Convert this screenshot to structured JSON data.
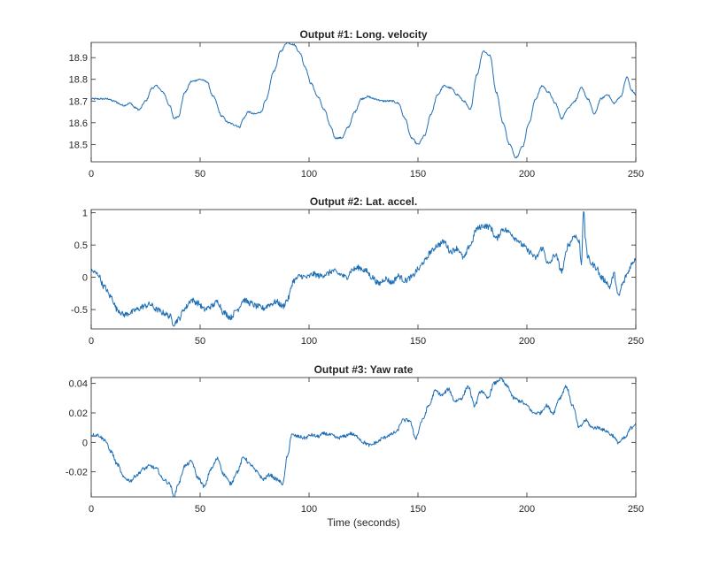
{
  "chart_data": [
    {
      "type": "line",
      "title": "Output #1: Long. velocity",
      "xlabel": "",
      "ylabel": "",
      "xlim": [
        0,
        250
      ],
      "ylim": [
        18.42,
        18.97
      ],
      "xticks": [
        0,
        50,
        100,
        150,
        200,
        250
      ],
      "xtick_labels": [
        "0",
        "50",
        "100",
        "150",
        "200",
        "250"
      ],
      "yticks": [
        18.5,
        18.6,
        18.7,
        18.8,
        18.9
      ],
      "ytick_labels": [
        "18.5",
        "18.6",
        "18.7",
        "18.8",
        "18.9"
      ],
      "color": "#1f6fb5",
      "noise": 0.004,
      "x": [
        0,
        5,
        8,
        10,
        15,
        18,
        20,
        22,
        25,
        28,
        30,
        33,
        36,
        38,
        40,
        43,
        46,
        50,
        53,
        56,
        60,
        63,
        66,
        68,
        70,
        72,
        75,
        78,
        80,
        84,
        87,
        90,
        93,
        96,
        98,
        101,
        104,
        107,
        110,
        112,
        115,
        118,
        121,
        124,
        127,
        130,
        134,
        138,
        141,
        144,
        147,
        150,
        153,
        156,
        159,
        162,
        165,
        168,
        171,
        174,
        177,
        180,
        183,
        186,
        189,
        192,
        195,
        198,
        201,
        204,
        207,
        210,
        213,
        216,
        219,
        222,
        225,
        228,
        231,
        234,
        237,
        240,
        243,
        246,
        248,
        250
      ],
      "y": [
        18.71,
        18.71,
        18.71,
        18.7,
        18.68,
        18.69,
        18.67,
        18.66,
        18.7,
        18.76,
        18.77,
        18.74,
        18.68,
        18.62,
        18.63,
        18.74,
        18.79,
        18.8,
        18.79,
        18.72,
        18.63,
        18.6,
        18.59,
        18.58,
        18.62,
        18.65,
        18.64,
        18.65,
        18.7,
        18.84,
        18.93,
        18.97,
        18.96,
        18.92,
        18.86,
        18.78,
        18.72,
        18.66,
        18.58,
        18.53,
        18.53,
        18.58,
        18.65,
        18.71,
        18.72,
        18.71,
        18.7,
        18.7,
        18.69,
        18.62,
        18.53,
        18.5,
        18.54,
        18.64,
        18.73,
        18.77,
        18.76,
        18.73,
        18.7,
        18.66,
        18.82,
        18.93,
        18.91,
        18.74,
        18.6,
        18.5,
        18.44,
        18.49,
        18.6,
        18.71,
        18.77,
        18.74,
        18.69,
        18.62,
        18.67,
        18.7,
        18.76,
        18.71,
        18.64,
        18.71,
        18.73,
        18.69,
        18.72,
        18.81,
        18.75,
        18.73
      ]
    },
    {
      "type": "line",
      "title": "Output #2: Lat. accel.",
      "xlabel": "",
      "ylabel": "",
      "xlim": [
        0,
        250
      ],
      "ylim": [
        -0.8,
        1.05
      ],
      "xticks": [
        0,
        50,
        100,
        150,
        200,
        250
      ],
      "xtick_labels": [
        "0",
        "50",
        "100",
        "150",
        "200",
        "250"
      ],
      "yticks": [
        -0.5,
        0,
        0.5,
        1
      ],
      "ytick_labels": [
        "-0.5",
        "0",
        "0.5",
        "1"
      ],
      "color": "#1f6fb5",
      "noise": 0.045,
      "x": [
        0,
        3,
        6,
        9,
        12,
        15,
        18,
        21,
        24,
        27,
        30,
        33,
        36,
        38,
        40,
        43,
        46,
        49,
        52,
        55,
        58,
        61,
        64,
        67,
        70,
        73,
        76,
        79,
        82,
        85,
        88,
        90,
        93,
        96,
        99,
        102,
        105,
        108,
        111,
        114,
        117,
        120,
        123,
        126,
        129,
        132,
        135,
        138,
        141,
        144,
        147,
        150,
        153,
        156,
        159,
        162,
        165,
        168,
        171,
        174,
        177,
        180,
        183,
        186,
        189,
        192,
        195,
        198,
        201,
        204,
        207,
        210,
        213,
        216,
        219,
        222,
        224,
        225,
        226,
        227,
        228,
        230,
        232,
        234,
        236,
        238,
        240,
        242,
        244,
        246,
        248,
        250
      ],
      "y": [
        0.1,
        0.05,
        -0.15,
        -0.3,
        -0.5,
        -0.58,
        -0.55,
        -0.5,
        -0.45,
        -0.42,
        -0.5,
        -0.55,
        -0.6,
        -0.72,
        -0.65,
        -0.48,
        -0.35,
        -0.4,
        -0.5,
        -0.45,
        -0.38,
        -0.55,
        -0.62,
        -0.5,
        -0.35,
        -0.4,
        -0.45,
        -0.48,
        -0.42,
        -0.38,
        -0.45,
        -0.35,
        -0.05,
        0.02,
        0.0,
        0.05,
        0.02,
        0.05,
        0.1,
        0.05,
        0.0,
        0.12,
        0.15,
        0.1,
        0.0,
        -0.1,
        -0.02,
        -0.08,
        0.02,
        -0.05,
        0.0,
        0.12,
        0.25,
        0.4,
        0.5,
        0.55,
        0.4,
        0.45,
        0.3,
        0.5,
        0.75,
        0.8,
        0.78,
        0.6,
        0.75,
        0.7,
        0.6,
        0.5,
        0.4,
        0.3,
        0.45,
        0.2,
        0.35,
        0.1,
        0.5,
        0.65,
        0.55,
        0.2,
        1.05,
        0.55,
        0.3,
        0.2,
        0.15,
        0.0,
        -0.05,
        -0.15,
        0.05,
        -0.3,
        -0.1,
        0.05,
        0.2,
        0.3
      ]
    },
    {
      "type": "line",
      "title": "Output #3: Yaw rate",
      "xlabel": "Time (seconds)",
      "ylabel": "",
      "xlim": [
        0,
        250
      ],
      "ylim": [
        -0.037,
        0.044
      ],
      "xticks": [
        0,
        50,
        100,
        150,
        200,
        250
      ],
      "xtick_labels": [
        "0",
        "50",
        "100",
        "150",
        "200",
        "250"
      ],
      "yticks": [
        -0.02,
        0,
        0.02,
        0.04
      ],
      "ytick_labels": [
        "-0.02",
        "0",
        "0.02",
        "0.04"
      ],
      "color": "#1f6fb5",
      "noise": 0.0012,
      "x": [
        0,
        3,
        6,
        9,
        12,
        15,
        18,
        21,
        24,
        27,
        30,
        33,
        36,
        38,
        40,
        43,
        46,
        49,
        52,
        55,
        58,
        61,
        64,
        67,
        70,
        73,
        76,
        79,
        82,
        85,
        88,
        90,
        92,
        95,
        98,
        101,
        104,
        107,
        110,
        113,
        116,
        119,
        122,
        125,
        128,
        131,
        134,
        137,
        140,
        143,
        146,
        149,
        152,
        155,
        158,
        161,
        164,
        167,
        170,
        173,
        176,
        179,
        182,
        185,
        188,
        191,
        194,
        197,
        200,
        203,
        206,
        209,
        212,
        215,
        218,
        221,
        224,
        227,
        230,
        233,
        236,
        239,
        242,
        245,
        248,
        250
      ],
      "y": [
        0.005,
        0.005,
        0.002,
        -0.006,
        -0.015,
        -0.024,
        -0.026,
        -0.022,
        -0.018,
        -0.016,
        -0.018,
        -0.025,
        -0.028,
        -0.037,
        -0.028,
        -0.016,
        -0.013,
        -0.024,
        -0.03,
        -0.018,
        -0.011,
        -0.022,
        -0.028,
        -0.02,
        -0.01,
        -0.015,
        -0.02,
        -0.025,
        -0.022,
        -0.025,
        -0.028,
        -0.01,
        0.005,
        0.004,
        0.003,
        0.005,
        0.004,
        0.006,
        0.005,
        0.003,
        0.004,
        0.006,
        0.004,
        0.0,
        -0.002,
        0.0,
        0.003,
        0.005,
        0.007,
        0.015,
        0.015,
        0.003,
        0.015,
        0.025,
        0.035,
        0.032,
        0.036,
        0.028,
        0.03,
        0.038,
        0.025,
        0.035,
        0.03,
        0.04,
        0.043,
        0.038,
        0.03,
        0.028,
        0.025,
        0.02,
        0.02,
        0.025,
        0.02,
        0.03,
        0.038,
        0.025,
        0.01,
        0.015,
        0.01,
        0.01,
        0.008,
        0.005,
        0.0,
        0.003,
        0.01,
        0.013
      ]
    }
  ]
}
